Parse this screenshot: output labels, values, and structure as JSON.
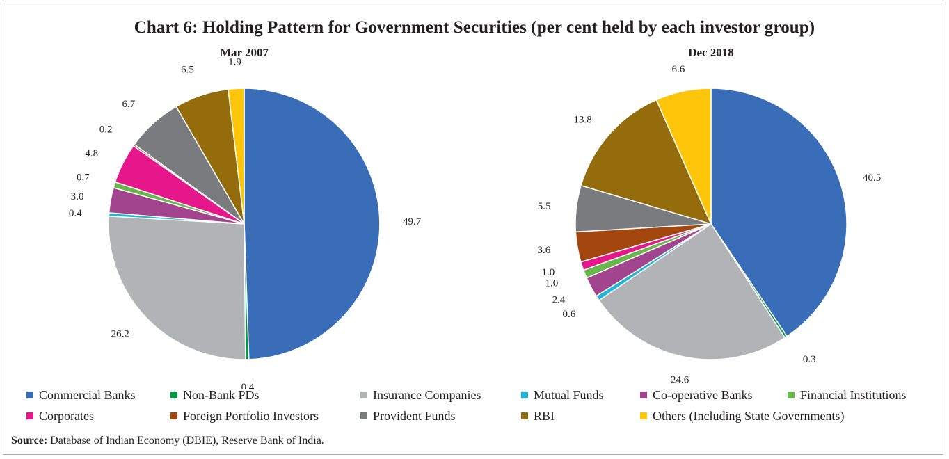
{
  "title": "Chart 6: Holding Pattern for Government Securities (per cent held by each investor group)",
  "source_label": "Source:",
  "source_text": "Database of Indian Economy (DBIE), Reserve Bank of India.",
  "legend": [
    {
      "name": "Commercial Banks",
      "color": "#3a6db7"
    },
    {
      "name": "Non-Bank PDs",
      "color": "#009a44"
    },
    {
      "name": "Insurance Companies",
      "color": "#b1b3b6"
    },
    {
      "name": "Mutual Funds",
      "color": "#22b4d6"
    },
    {
      "name": "Co-operative Banks",
      "color": "#a3458e"
    },
    {
      "name": "Financial Institutions",
      "color": "#6ab74e"
    },
    {
      "name": "Corporates",
      "color": "#e6168b"
    },
    {
      "name": "Foreign Portfolio Investors",
      "color": "#a3470f"
    },
    {
      "name": "Provident Funds",
      "color": "#7a7b7e"
    },
    {
      "name": "RBI",
      "color": "#946c0b"
    },
    {
      "name": "Others (Including State Governments)",
      "color": "#fdc60b"
    }
  ],
  "chart_data": [
    {
      "type": "pie",
      "title": "Mar 2007",
      "slices": [
        {
          "category": "Commercial Banks",
          "value": 49.7,
          "label": "49.7"
        },
        {
          "category": "Non-Bank PDs",
          "value": 0.4,
          "label": "0.4"
        },
        {
          "category": "Insurance Companies",
          "value": 26.2,
          "label": "26.2"
        },
        {
          "category": "Mutual Funds",
          "value": 0.4,
          "label": "0.4"
        },
        {
          "category": "Co-operative Banks",
          "value": 3.0,
          "label": "3.0"
        },
        {
          "category": "Financial Institutions",
          "value": 0.7,
          "label": "0.7"
        },
        {
          "category": "Corporates",
          "value": 4.8,
          "label": "4.8"
        },
        {
          "category": "Foreign Portfolio Investors",
          "value": 0.2,
          "label": "0.2"
        },
        {
          "category": "Provident Funds",
          "value": 6.7,
          "label": "6.7"
        },
        {
          "category": "RBI",
          "value": 6.5,
          "label": "6.5"
        },
        {
          "category": "Others (Including State Governments)",
          "value": 1.9,
          "label": "1.9"
        }
      ]
    },
    {
      "type": "pie",
      "title": "Dec 2018",
      "slices": [
        {
          "category": "Commercial Banks",
          "value": 40.5,
          "label": "40.5"
        },
        {
          "category": "Non-Bank PDs",
          "value": 0.3,
          "label": "0.3"
        },
        {
          "category": "Insurance Companies",
          "value": 24.6,
          "label": "24.6"
        },
        {
          "category": "Mutual Funds",
          "value": 0.6,
          "label": "0.6"
        },
        {
          "category": "Co-operative Banks",
          "value": 2.4,
          "label": "2.4"
        },
        {
          "category": "Financial Institutions",
          "value": 1.0,
          "label": "1.0"
        },
        {
          "category": "Corporates",
          "value": 1.0,
          "label": "1.0"
        },
        {
          "category": "Foreign Portfolio Investors",
          "value": 3.6,
          "label": "3.6"
        },
        {
          "category": "Provident Funds",
          "value": 5.5,
          "label": "5.5"
        },
        {
          "category": "RBI",
          "value": 13.8,
          "label": "13.8"
        },
        {
          "category": "Others (Including State Governments)",
          "value": 6.6,
          "label": "6.6"
        }
      ]
    }
  ]
}
